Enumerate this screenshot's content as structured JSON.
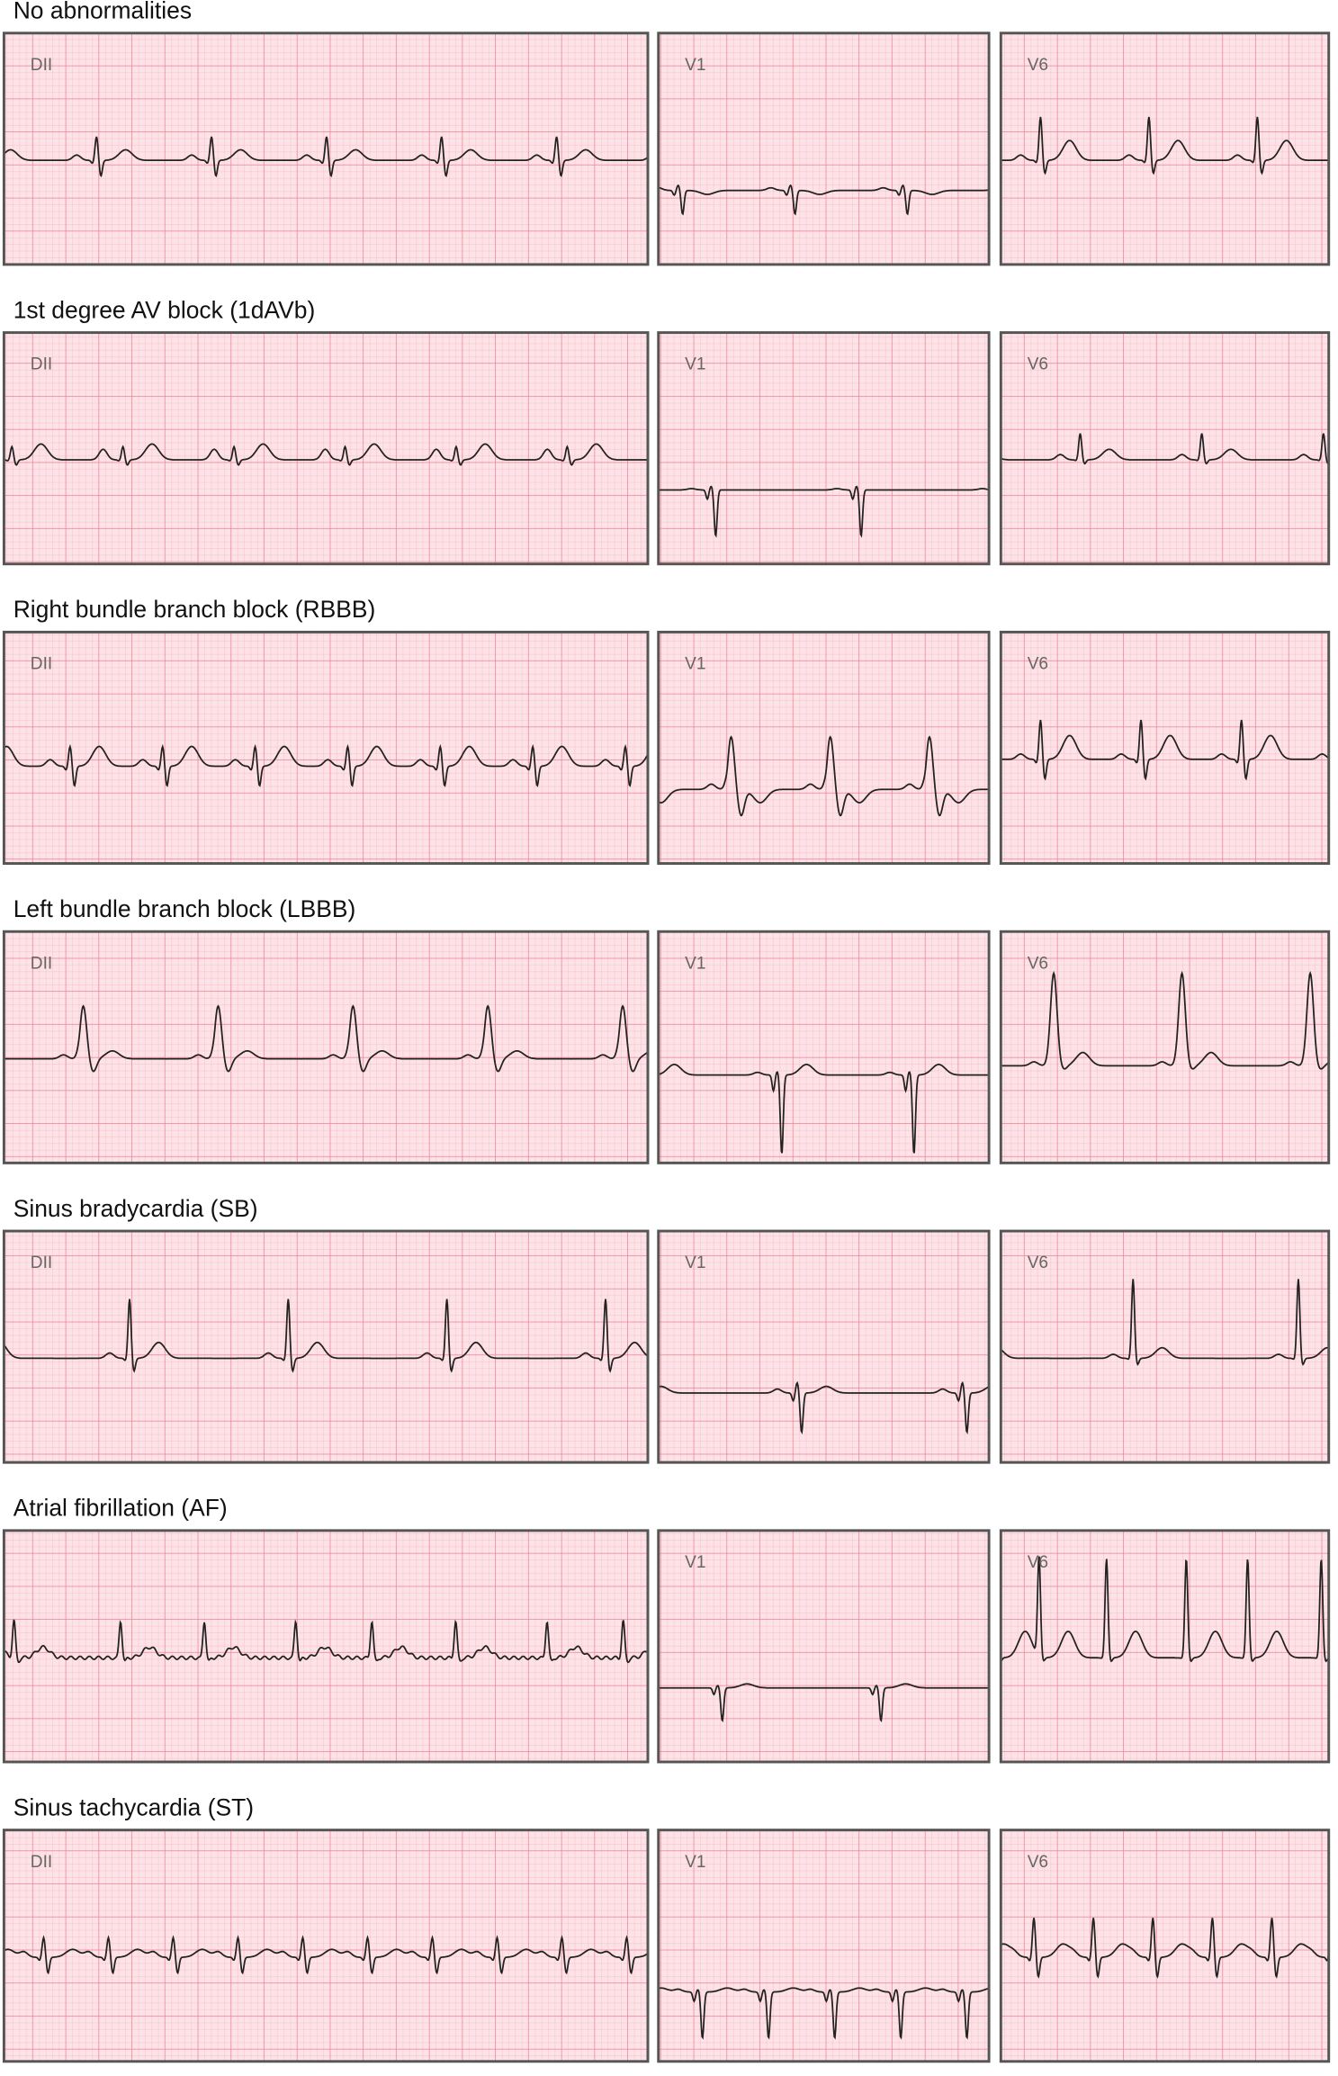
{
  "rows": [
    {
      "title": "No abnormalities",
      "leads": [
        "DII",
        "V1",
        "V6"
      ]
    },
    {
      "title": "1st degree AV block (1dAVb)",
      "leads": [
        "DII",
        "V1",
        "V6"
      ]
    },
    {
      "title": "Right bundle branch block (RBBB)",
      "leads": [
        "DII",
        "V1",
        "V6"
      ]
    },
    {
      "title": "Left bundle branch block (LBBB)",
      "leads": [
        "DII",
        "V1",
        "V6"
      ]
    },
    {
      "title": "Sinus bradycardia (SB)",
      "leads": [
        "DII",
        "V1",
        "V6"
      ]
    },
    {
      "title": "Atrial fibrillation (AF)",
      "leads": [
        "V1",
        "V6"
      ]
    },
    {
      "title": "Sinus tachycardia (ST)",
      "leads": [
        "DII",
        "V1",
        "V6"
      ]
    }
  ]
}
